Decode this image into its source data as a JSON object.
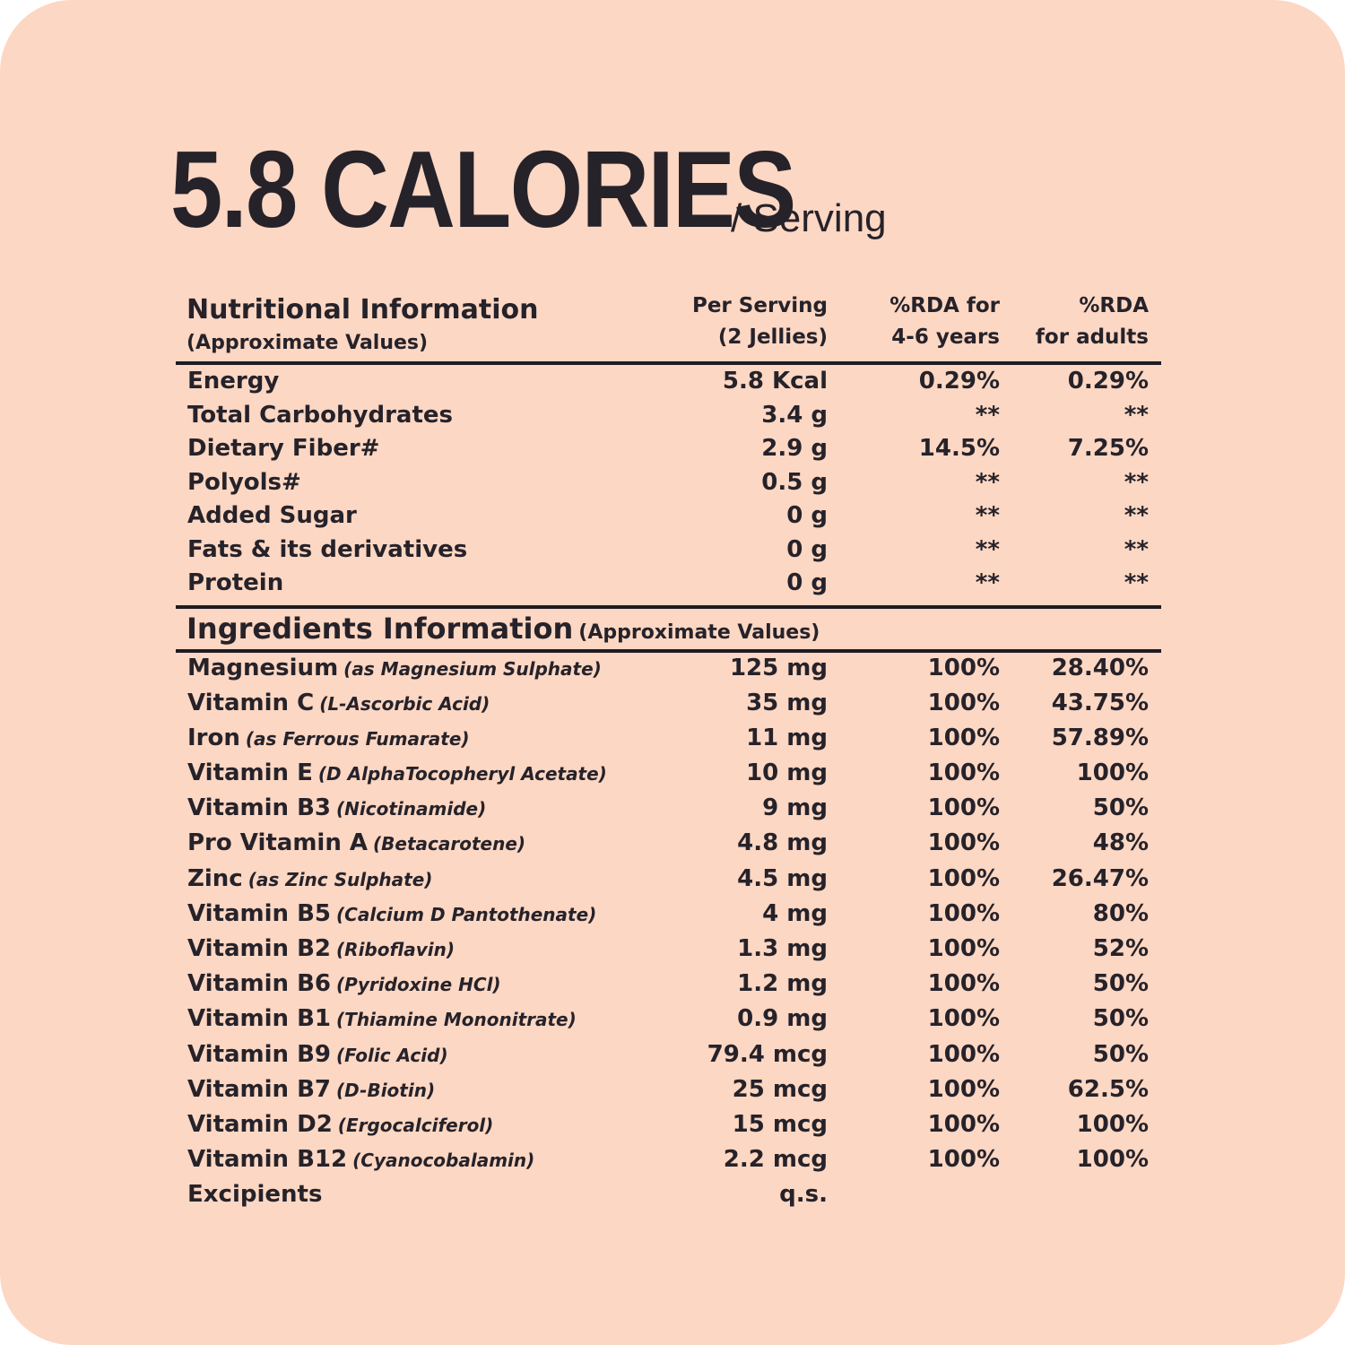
{
  "headline": {
    "calories": "5.8 CALORIES",
    "per": "/ Serving"
  },
  "nutrition_header": {
    "title": "Nutritional Information",
    "subtitle": "(Approximate Values)",
    "col1": "Per Serving\n(2 Jellies)",
    "col2": "%RDA for\n4-6 years",
    "col3": "%RDA\nfor adults"
  },
  "nutrition_rows": [
    {
      "name": "Energy",
      "serving": "5.8 Kcal",
      "rda_kids": "0.29%",
      "rda_adults": "0.29%"
    },
    {
      "name": "Total Carbohydrates",
      "serving": "3.4 g",
      "rda_kids": "**",
      "rda_adults": "**"
    },
    {
      "name": "Dietary Fiber#",
      "serving": "2.9 g",
      "rda_kids": "14.5%",
      "rda_adults": "7.25%"
    },
    {
      "name": "Polyols#",
      "serving": "0.5 g",
      "rda_kids": "**",
      "rda_adults": "**"
    },
    {
      "name": "Added Sugar",
      "serving": "0 g",
      "rda_kids": "**",
      "rda_adults": "**"
    },
    {
      "name": "Fats & its derivatives",
      "serving": "0 g",
      "rda_kids": "**",
      "rda_adults": "**"
    },
    {
      "name": "Protein",
      "serving": "0 g",
      "rda_kids": "**",
      "rda_adults": "**"
    }
  ],
  "ingredients_header": {
    "title": "Ingredients Information",
    "subtitle": "(Approximate Values)"
  },
  "ingredient_rows": [
    {
      "name": "Magnesium",
      "note": "(as Magnesium Sulphate)",
      "serving": "125 mg",
      "rda_kids": "100%",
      "rda_adults": "28.40%"
    },
    {
      "name": "Vitamin C",
      "note": "(L-Ascorbic Acid)",
      "serving": "35 mg",
      "rda_kids": "100%",
      "rda_adults": "43.75%"
    },
    {
      "name": "Iron",
      "note": "(as Ferrous Fumarate)",
      "serving": "11 mg",
      "rda_kids": "100%",
      "rda_adults": "57.89%"
    },
    {
      "name": "Vitamin E",
      "note": "(D AlphaTocopheryl Acetate)",
      "serving": "10 mg",
      "rda_kids": "100%",
      "rda_adults": "100%"
    },
    {
      "name": "Vitamin B3",
      "note": "(Nicotinamide)",
      "serving": "9 mg",
      "rda_kids": "100%",
      "rda_adults": "50%"
    },
    {
      "name": "Pro Vitamin A",
      "note": "(Betacarotene)",
      "serving": "4.8 mg",
      "rda_kids": "100%",
      "rda_adults": "48%"
    },
    {
      "name": "Zinc",
      "note": "(as Zinc Sulphate)",
      "serving": "4.5 mg",
      "rda_kids": "100%",
      "rda_adults": "26.47%"
    },
    {
      "name": "Vitamin B5",
      "note": "(Calcium D Pantothenate)",
      "serving": "4 mg",
      "rda_kids": "100%",
      "rda_adults": "80%"
    },
    {
      "name": "Vitamin B2",
      "note": "(Riboflavin)",
      "serving": "1.3 mg",
      "rda_kids": "100%",
      "rda_adults": "52%"
    },
    {
      "name": "Vitamin B6",
      "note": "(Pyridoxine HCl)",
      "serving": "1.2 mg",
      "rda_kids": "100%",
      "rda_adults": "50%"
    },
    {
      "name": "Vitamin B1",
      "note": "(Thiamine Mononitrate)",
      "serving": "0.9 mg",
      "rda_kids": "100%",
      "rda_adults": "50%"
    },
    {
      "name": "Vitamin B9",
      "note": "(Folic Acid)",
      "serving": "79.4 mcg",
      "rda_kids": "100%",
      "rda_adults": "50%"
    },
    {
      "name": "Vitamin B7",
      "note": "(D-Biotin)",
      "serving": "25 mcg",
      "rda_kids": "100%",
      "rda_adults": "62.5%"
    },
    {
      "name": "Vitamin D2",
      "note": "(Ergocalciferol)",
      "serving": "15 mcg",
      "rda_kids": "100%",
      "rda_adults": "100%"
    },
    {
      "name": "Vitamin B12",
      "note": "(Cyanocobalamin)",
      "serving": "2.2 mcg",
      "rda_kids": "100%",
      "rda_adults": "100%"
    },
    {
      "name": "Excipients",
      "note": "",
      "serving": "q.s.",
      "rda_kids": "",
      "rda_adults": ""
    }
  ],
  "colors": {
    "background": "#fcd7c3",
    "text": "#26222a"
  }
}
